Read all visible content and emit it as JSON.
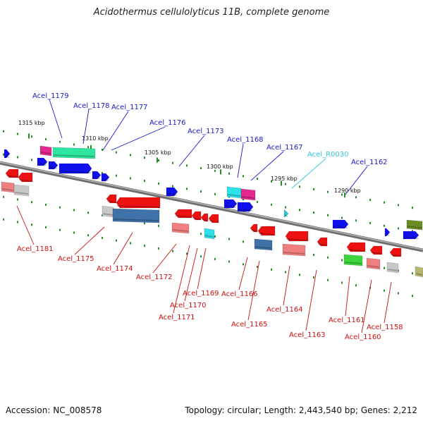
{
  "title": "Acidothermus cellulolyticus 11B, complete genome",
  "footer": {
    "accession": "Accession: NC_008578",
    "summary": "Topology: circular; Length: 2,443,540 bp; Genes: 2,212"
  },
  "colors": {
    "forward_label": "#1a1acc",
    "reverse_label": "#cc1111",
    "rna_label": "#33c5d6",
    "backbone": "#8c8c8c",
    "tick": "#2a8a2a"
  },
  "kbp_labels": [
    "1315 kbp",
    "1310 kbp",
    "1305 kbp",
    "1300 kbp",
    "1295 kbp",
    "1290 kbp"
  ],
  "forward_genes": [
    "Acel_1179",
    "Acel_1178",
    "Acel_1177",
    "Acel_1176",
    "Acel_1173",
    "Acel_1168",
    "Acel_1167",
    "Acel_1162"
  ],
  "rna_genes": [
    "Acel_R0030"
  ],
  "reverse_genes": [
    "Acel_1181",
    "Acel_1175",
    "Acel_1174",
    "Acel_1172",
    "Acel_1169",
    "Acel_1170",
    "Acel_1171",
    "Acel_1166",
    "Acel_1165",
    "Acel_1164",
    "Acel_1163",
    "Acel_1161",
    "Acel_1160",
    "Acel_1158"
  ]
}
